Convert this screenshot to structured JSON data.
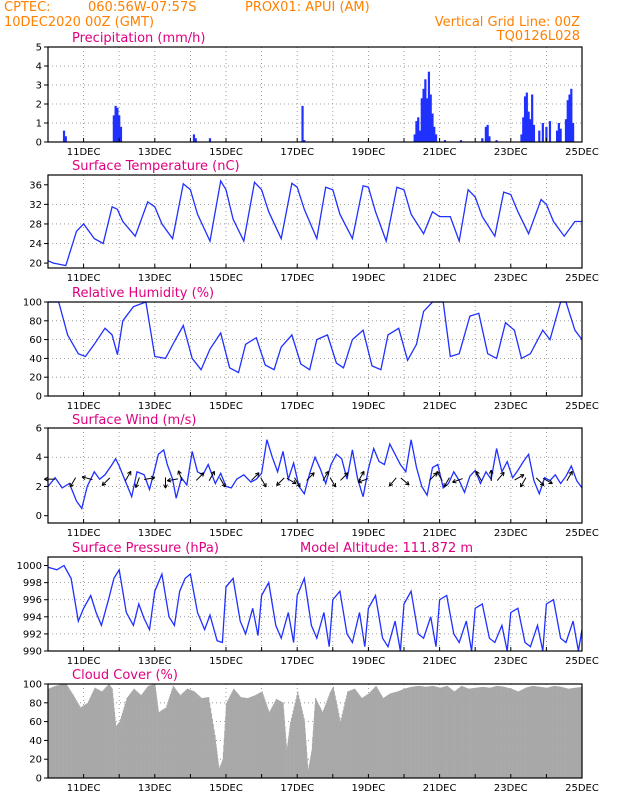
{
  "header": {
    "source": "CPTEC:",
    "coords": "060:56W-07:57S",
    "station": "PROX01: APUI (AM)",
    "datetime": "10DEC2020 00Z (GMT)",
    "grid_note": "Vertical Grid Line: 00Z",
    "run_id": "TQ0126L028"
  },
  "colors": {
    "header": "#ff8000",
    "title": "#e0007f",
    "line": "#2030ff",
    "bars": "#2030ff",
    "cloud": "#a8a8a8",
    "arrow": "#000000"
  },
  "x_axis": {
    "start_day": 10,
    "end_day": 25,
    "tick_labels": [
      "11DEC",
      "13DEC",
      "15DEC",
      "17DEC",
      "19DEC",
      "21DEC",
      "23DEC",
      "25DEC"
    ]
  },
  "chart_data": [
    {
      "type": "bar",
      "id": "precip",
      "title": "Precipitation (mm/h)",
      "ylim": [
        0,
        5
      ],
      "yticks": [
        0,
        1,
        2,
        3,
        4,
        5
      ],
      "points": [
        [
          10.45,
          0.6
        ],
        [
          10.5,
          0.3
        ],
        [
          11.85,
          1.4
        ],
        [
          11.9,
          1.9
        ],
        [
          11.95,
          1.8
        ],
        [
          12.0,
          1.4
        ],
        [
          12.05,
          0.8
        ],
        [
          14.1,
          0.4
        ],
        [
          14.15,
          0.2
        ],
        [
          14.55,
          0.2
        ],
        [
          17.15,
          1.9
        ],
        [
          17.2,
          0.1
        ],
        [
          20.3,
          0.4
        ],
        [
          20.35,
          1.1
        ],
        [
          20.4,
          1.3
        ],
        [
          20.45,
          0.6
        ],
        [
          20.5,
          2.3
        ],
        [
          20.55,
          2.8
        ],
        [
          20.6,
          3.3
        ],
        [
          20.65,
          2.3
        ],
        [
          20.7,
          3.7
        ],
        [
          20.75,
          2.5
        ],
        [
          20.8,
          1.5
        ],
        [
          20.85,
          0.8
        ],
        [
          20.9,
          0.4
        ],
        [
          21.15,
          0.1
        ],
        [
          21.6,
          0.1
        ],
        [
          22.2,
          0.2
        ],
        [
          22.3,
          0.8
        ],
        [
          22.35,
          0.9
        ],
        [
          22.4,
          0.3
        ],
        [
          22.6,
          0.1
        ],
        [
          23.3,
          0.4
        ],
        [
          23.35,
          1.3
        ],
        [
          23.4,
          2.4
        ],
        [
          23.45,
          2.6
        ],
        [
          23.5,
          1.6
        ],
        [
          23.55,
          1.2
        ],
        [
          23.6,
          2.5
        ],
        [
          23.65,
          0.9
        ],
        [
          23.8,
          0.6
        ],
        [
          23.9,
          1.0
        ],
        [
          24.0,
          0.8
        ],
        [
          24.1,
          1.1
        ],
        [
          24.3,
          0.6
        ],
        [
          24.35,
          1.0
        ],
        [
          24.4,
          0.7
        ],
        [
          24.55,
          1.2
        ],
        [
          24.6,
          2.2
        ],
        [
          24.65,
          2.5
        ],
        [
          24.7,
          2.8
        ],
        [
          24.75,
          1.0
        ]
      ]
    },
    {
      "type": "line",
      "id": "temp",
      "title": "Surface Temperature (nC)",
      "ylim": [
        19,
        38
      ],
      "yticks": [
        20,
        24,
        28,
        32,
        36
      ],
      "x": [
        10.0,
        10.15,
        10.3,
        10.5,
        10.8,
        11.0,
        11.3,
        11.55,
        11.8,
        11.95,
        12.1,
        12.45,
        12.8,
        13.0,
        13.2,
        13.5,
        13.8,
        14.0,
        14.2,
        14.55,
        14.85,
        15.0,
        15.2,
        15.5,
        15.8,
        16.0,
        16.2,
        16.55,
        16.85,
        17.0,
        17.2,
        17.55,
        17.8,
        18.0,
        18.2,
        18.55,
        18.85,
        19.0,
        19.2,
        19.5,
        19.8,
        20.0,
        20.2,
        20.55,
        20.8,
        21.0,
        21.3,
        21.55,
        21.8,
        22.0,
        22.2,
        22.55,
        22.8,
        23.0,
        23.2,
        23.5,
        23.85,
        24.0,
        24.2,
        24.5,
        24.8,
        25.0
      ],
      "y": [
        20.5,
        20.0,
        19.8,
        19.5,
        26.5,
        28.0,
        25.0,
        24.0,
        31.5,
        31.0,
        28.5,
        25.5,
        32.5,
        31.5,
        28.0,
        25.0,
        36.2,
        35.0,
        30.0,
        24.5,
        36.8,
        35.0,
        29.0,
        24.5,
        36.5,
        35.0,
        30.5,
        25.0,
        36.3,
        35.5,
        31.0,
        25.0,
        35.5,
        35.0,
        30.0,
        25.0,
        35.8,
        35.5,
        30.5,
        24.5,
        35.5,
        35.0,
        30.0,
        26.0,
        30.5,
        29.5,
        29.5,
        24.5,
        35.0,
        33.5,
        29.5,
        25.5,
        34.5,
        34.0,
        30.5,
        26.0,
        33.0,
        32.0,
        28.5,
        25.5,
        28.5,
        28.5
      ]
    },
    {
      "type": "line",
      "id": "rh",
      "title": "Relative Humidity (%)",
      "ylim": [
        0,
        100
      ],
      "yticks": [
        0,
        20,
        40,
        60,
        80,
        100
      ],
      "x": [
        10.0,
        10.3,
        10.55,
        10.85,
        11.05,
        11.3,
        11.6,
        11.8,
        11.95,
        12.1,
        12.4,
        12.75,
        13.0,
        13.3,
        13.55,
        13.8,
        14.05,
        14.3,
        14.55,
        14.85,
        15.1,
        15.35,
        15.55,
        15.85,
        16.1,
        16.35,
        16.55,
        16.85,
        17.1,
        17.35,
        17.55,
        17.85,
        18.1,
        18.3,
        18.55,
        18.85,
        19.1,
        19.35,
        19.55,
        19.85,
        20.1,
        20.35,
        20.55,
        20.8,
        21.1,
        21.3,
        21.55,
        21.85,
        22.1,
        22.35,
        22.6,
        22.85,
        23.1,
        23.3,
        23.55,
        23.9,
        24.1,
        24.4,
        24.55,
        24.8,
        25.0
      ],
      "y": [
        100,
        100,
        65,
        45,
        42,
        55,
        72,
        65,
        44,
        80,
        95,
        100,
        42,
        40,
        58,
        75,
        40,
        28,
        50,
        67,
        30,
        25,
        55,
        62,
        33,
        28,
        52,
        65,
        34,
        28,
        60,
        65,
        35,
        30,
        60,
        70,
        32,
        28,
        65,
        72,
        38,
        55,
        90,
        100,
        100,
        42,
        45,
        85,
        88,
        45,
        40,
        78,
        70,
        40,
        45,
        70,
        60,
        100,
        100,
        70,
        60
      ]
    },
    {
      "type": "line",
      "id": "wind",
      "title": "Surface Wind (m/s)",
      "ylim": [
        -0.5,
        6
      ],
      "yticks": [
        0,
        2,
        4,
        6
      ],
      "x": [
        10.0,
        10.2,
        10.4,
        10.6,
        10.8,
        10.95,
        11.1,
        11.3,
        11.45,
        11.6,
        11.8,
        11.9,
        12.0,
        12.2,
        12.35,
        12.5,
        12.7,
        12.85,
        13.0,
        13.1,
        13.25,
        13.35,
        13.5,
        13.6,
        13.75,
        13.9,
        14.05,
        14.2,
        14.35,
        14.5,
        14.7,
        14.85,
        15.0,
        15.15,
        15.3,
        15.5,
        15.7,
        15.85,
        16.0,
        16.15,
        16.3,
        16.45,
        16.6,
        16.75,
        16.9,
        17.05,
        17.2,
        17.35,
        17.5,
        17.65,
        17.8,
        17.95,
        18.1,
        18.25,
        18.4,
        18.55,
        18.7,
        18.85,
        19.0,
        19.15,
        19.3,
        19.45,
        19.6,
        19.75,
        19.9,
        20.05,
        20.2,
        20.35,
        20.5,
        20.65,
        20.8,
        20.95,
        21.1,
        21.25,
        21.4,
        21.55,
        21.7,
        21.85,
        22.0,
        22.15,
        22.3,
        22.45,
        22.6,
        22.75,
        22.9,
        23.05,
        23.2,
        23.35,
        23.5,
        23.65,
        23.8,
        23.95,
        24.1,
        24.25,
        24.4,
        24.55,
        24.7,
        24.85,
        25.0
      ],
      "y": [
        2.0,
        2.6,
        1.9,
        2.2,
        1.0,
        0.5,
        2.0,
        3.0,
        2.5,
        2.8,
        3.5,
        3.9,
        3.4,
        2.2,
        1.3,
        3.0,
        2.8,
        1.8,
        3.2,
        4.2,
        4.5,
        3.5,
        2.5,
        1.2,
        2.6,
        2.1,
        4.4,
        3.0,
        2.8,
        3.5,
        2.2,
        2.9,
        2.0,
        1.9,
        2.5,
        2.8,
        2.3,
        2.5,
        2.9,
        5.2,
        4.0,
        3.0,
        4.4,
        2.5,
        3.6,
        2.0,
        1.5,
        2.9,
        4.0,
        3.2,
        2.2,
        3.5,
        4.2,
        3.9,
        2.5,
        4.5,
        2.5,
        1.3,
        3.2,
        4.6,
        3.7,
        3.5,
        4.9,
        4.2,
        3.5,
        3.0,
        5.2,
        3.3,
        2.0,
        1.4,
        3.3,
        3.5,
        1.9,
        2.2,
        3.0,
        2.4,
        1.6,
        2.7,
        3.1,
        2.2,
        3.0,
        2.5,
        4.6,
        3.0,
        3.7,
        2.6,
        3.1,
        3.7,
        4.2,
        2.4,
        1.5,
        2.6,
        2.4,
        2.8,
        2.2,
        2.7,
        3.4,
        2.4,
        1.9
      ]
    },
    {
      "type": "line",
      "id": "press",
      "title": "Surface Pressure (hPa)",
      "annotation": "Model Altitude: 111.872 m",
      "ylim": [
        990,
        1001
      ],
      "yticks": [
        990,
        992,
        994,
        996,
        998,
        1000
      ],
      "x": [
        10.0,
        10.25,
        10.45,
        10.65,
        10.85,
        11.0,
        11.2,
        11.35,
        11.5,
        11.7,
        11.85,
        12.0,
        12.2,
        12.4,
        12.55,
        12.7,
        12.85,
        13.0,
        13.2,
        13.4,
        13.55,
        13.7,
        13.85,
        14.0,
        14.2,
        14.4,
        14.55,
        14.75,
        14.9,
        15.0,
        15.2,
        15.4,
        15.55,
        15.75,
        15.9,
        16.0,
        16.2,
        16.4,
        16.55,
        16.75,
        16.9,
        17.0,
        17.2,
        17.4,
        17.55,
        17.75,
        17.9,
        18.0,
        18.2,
        18.4,
        18.55,
        18.75,
        18.9,
        19.0,
        19.2,
        19.4,
        19.55,
        19.75,
        19.9,
        20.0,
        20.2,
        20.4,
        20.55,
        20.75,
        20.9,
        21.0,
        21.2,
        21.4,
        21.55,
        21.75,
        21.9,
        22.0,
        22.2,
        22.4,
        22.55,
        22.75,
        22.9,
        23.0,
        23.2,
        23.4,
        23.55,
        23.75,
        23.9,
        24.0,
        24.2,
        24.4,
        24.55,
        24.75,
        24.9,
        25.0
      ],
      "y": [
        999.8,
        999.5,
        1000.0,
        998.5,
        993.5,
        995.0,
        996.5,
        994.5,
        993.0,
        996.0,
        998.5,
        999.5,
        994.5,
        993.0,
        995.5,
        993.8,
        992.5,
        997.0,
        999.0,
        994.0,
        993.0,
        997.0,
        998.5,
        999.0,
        994.5,
        992.5,
        994.2,
        991.2,
        991.0,
        997.5,
        998.5,
        993.5,
        992.0,
        995.0,
        991.8,
        996.5,
        998.0,
        993.0,
        991.5,
        994.5,
        991.0,
        996.5,
        998.5,
        993.0,
        991.5,
        994.5,
        990.5,
        996.0,
        997.0,
        992.0,
        991.0,
        994.5,
        990.5,
        995.0,
        996.5,
        991.5,
        990.5,
        993.5,
        990.0,
        995.5,
        997.0,
        992.0,
        991.5,
        994.0,
        990.5,
        996.0,
        996.5,
        992.0,
        991.0,
        993.5,
        990.0,
        995.0,
        995.5,
        991.5,
        991.0,
        993.0,
        990.0,
        994.5,
        995.0,
        991.0,
        990.5,
        993.0,
        990.0,
        995.5,
        996.0,
        991.5,
        991.0,
        993.5,
        990.0,
        992.5
      ]
    },
    {
      "type": "area",
      "id": "cloud",
      "title": "Cloud Cover (%)",
      "ylim": [
        0,
        100
      ],
      "yticks": [
        0,
        20,
        40,
        60,
        80,
        100
      ],
      "x": [
        10.0,
        10.2,
        10.4,
        10.5,
        10.7,
        10.9,
        11.1,
        11.3,
        11.5,
        11.7,
        11.8,
        11.9,
        12.0,
        12.2,
        12.4,
        12.6,
        12.8,
        13.0,
        13.1,
        13.3,
        13.5,
        13.7,
        13.9,
        14.1,
        14.3,
        14.5,
        14.7,
        14.8,
        14.9,
        15.0,
        15.2,
        15.4,
        15.6,
        15.8,
        16.0,
        16.2,
        16.4,
        16.6,
        16.7,
        16.8,
        17.0,
        17.2,
        17.3,
        17.4,
        17.5,
        17.7,
        17.9,
        18.0,
        18.2,
        18.4,
        18.6,
        18.8,
        19.0,
        19.2,
        19.4,
        19.6,
        19.8,
        20.0,
        20.2,
        20.4,
        20.6,
        20.8,
        21.0,
        21.2,
        21.4,
        21.6,
        21.8,
        22.0,
        22.2,
        22.4,
        22.6,
        22.8,
        23.0,
        23.2,
        23.4,
        23.6,
        23.8,
        24.0,
        24.2,
        24.4,
        24.6,
        24.8,
        25.0
      ],
      "y": [
        95,
        98,
        100,
        100,
        88,
        75,
        80,
        96,
        92,
        100,
        95,
        55,
        60,
        85,
        95,
        88,
        98,
        100,
        70,
        75,
        98,
        88,
        95,
        92,
        85,
        86,
        40,
        10,
        20,
        80,
        95,
        86,
        85,
        88,
        92,
        70,
        84,
        80,
        30,
        60,
        92,
        60,
        8,
        30,
        85,
        70,
        90,
        97,
        60,
        92,
        95,
        85,
        90,
        98,
        85,
        90,
        92,
        95,
        97,
        98,
        97,
        98,
        96,
        98,
        92,
        98,
        95,
        96,
        97,
        96,
        98,
        97,
        95,
        92,
        96,
        98,
        97,
        96,
        98,
        97,
        95,
        96,
        97
      ]
    }
  ],
  "wind_arrows": [
    {
      "day": 10.15,
      "dir": 180
    },
    {
      "day": 10.75,
      "dir": 240
    },
    {
      "day": 11.2,
      "dir": 165
    },
    {
      "day": 11.7,
      "dir": 225
    },
    {
      "day": 12.2,
      "dir": 60
    },
    {
      "day": 12.55,
      "dir": 250
    },
    {
      "day": 12.75,
      "dir": 10
    },
    {
      "day": 13.3,
      "dir": 270
    },
    {
      "day": 13.6,
      "dir": 190
    },
    {
      "day": 13.75,
      "dir": 110
    },
    {
      "day": 14.2,
      "dir": 45
    },
    {
      "day": 14.55,
      "dir": 60
    },
    {
      "day": 14.85,
      "dir": 300
    },
    {
      "day": 15.75,
      "dir": 45
    },
    {
      "day": 16.0,
      "dir": 300
    },
    {
      "day": 16.6,
      "dir": 225
    },
    {
      "day": 16.75,
      "dir": 330
    },
    {
      "day": 16.95,
      "dir": 300
    },
    {
      "day": 17.3,
      "dir": 45
    },
    {
      "day": 17.75,
      "dir": 60
    },
    {
      "day": 17.95,
      "dir": 300
    },
    {
      "day": 18.25,
      "dir": 45
    },
    {
      "day": 18.75,
      "dir": 60
    },
    {
      "day": 18.95,
      "dir": 200
    },
    {
      "day": 19.75,
      "dir": 230
    },
    {
      "day": 19.95,
      "dir": 320
    },
    {
      "day": 20.75,
      "dir": 45
    },
    {
      "day": 21.05,
      "dir": 120
    },
    {
      "day": 21.25,
      "dir": 240
    },
    {
      "day": 21.6,
      "dir": 200
    },
    {
      "day": 22.15,
      "dir": 120
    },
    {
      "day": 22.45,
      "dir": 90
    },
    {
      "day": 22.65,
      "dir": 50
    },
    {
      "day": 23.15,
      "dir": 30
    },
    {
      "day": 23.4,
      "dir": 240
    },
    {
      "day": 23.75,
      "dir": 315
    },
    {
      "day": 23.95,
      "dir": 330
    },
    {
      "day": 24.6,
      "dir": 60
    }
  ]
}
